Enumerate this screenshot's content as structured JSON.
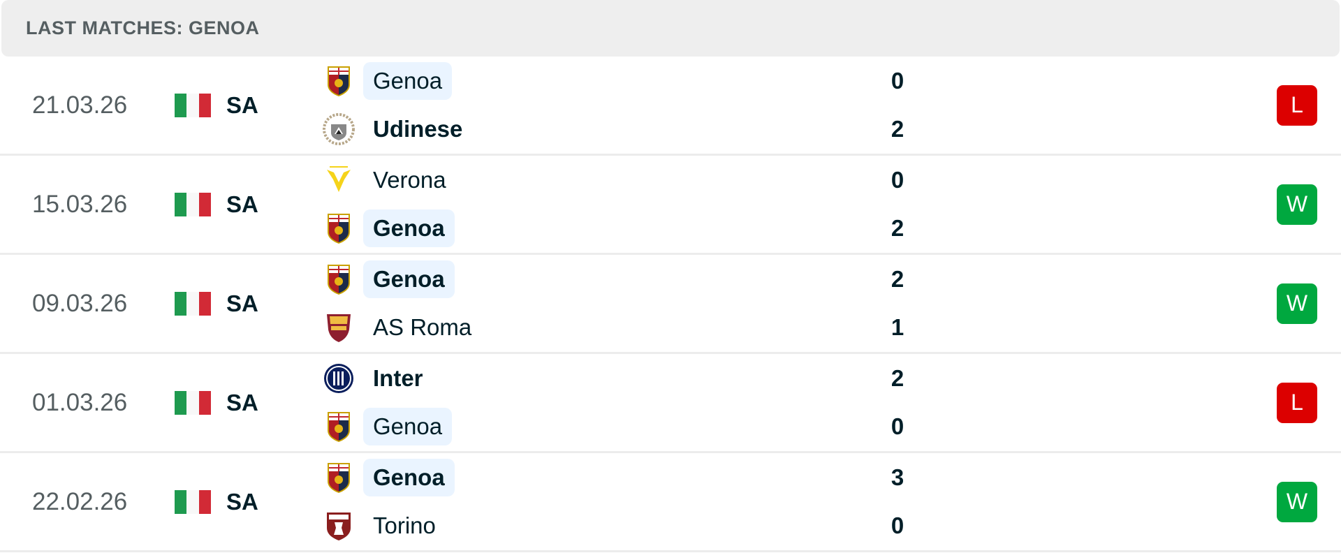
{
  "header": {
    "title": "LAST MATCHES: GENOA"
  },
  "colors": {
    "win": "#00a83f",
    "loss": "#dc0000",
    "highlight": "#eaf4ff"
  },
  "matches": [
    {
      "date": "21.03.26",
      "flag": "italy-flag",
      "league": "SA",
      "home": {
        "name": "Genoa",
        "logo": "genoa-crest",
        "score": "0",
        "bold": false,
        "highlight": true
      },
      "away": {
        "name": "Udinese",
        "logo": "udinese-crest",
        "score": "2",
        "bold": true,
        "highlight": false
      },
      "result": "L"
    },
    {
      "date": "15.03.26",
      "flag": "italy-flag",
      "league": "SA",
      "home": {
        "name": "Verona",
        "logo": "verona-crest",
        "score": "0",
        "bold": false,
        "highlight": false
      },
      "away": {
        "name": "Genoa",
        "logo": "genoa-crest",
        "score": "2",
        "bold": true,
        "highlight": true
      },
      "result": "W"
    },
    {
      "date": "09.03.26",
      "flag": "italy-flag",
      "league": "SA",
      "home": {
        "name": "Genoa",
        "logo": "genoa-crest",
        "score": "2",
        "bold": true,
        "highlight": true
      },
      "away": {
        "name": "AS Roma",
        "logo": "roma-crest",
        "score": "1",
        "bold": false,
        "highlight": false
      },
      "result": "W"
    },
    {
      "date": "01.03.26",
      "flag": "italy-flag",
      "league": "SA",
      "home": {
        "name": "Inter",
        "logo": "inter-crest",
        "score": "2",
        "bold": true,
        "highlight": false
      },
      "away": {
        "name": "Genoa",
        "logo": "genoa-crest",
        "score": "0",
        "bold": false,
        "highlight": true
      },
      "result": "L"
    },
    {
      "date": "22.02.26",
      "flag": "italy-flag",
      "league": "SA",
      "home": {
        "name": "Genoa",
        "logo": "genoa-crest",
        "score": "3",
        "bold": true,
        "highlight": true
      },
      "away": {
        "name": "Torino",
        "logo": "torino-crest",
        "score": "0",
        "bold": false,
        "highlight": false
      },
      "result": "W"
    }
  ]
}
